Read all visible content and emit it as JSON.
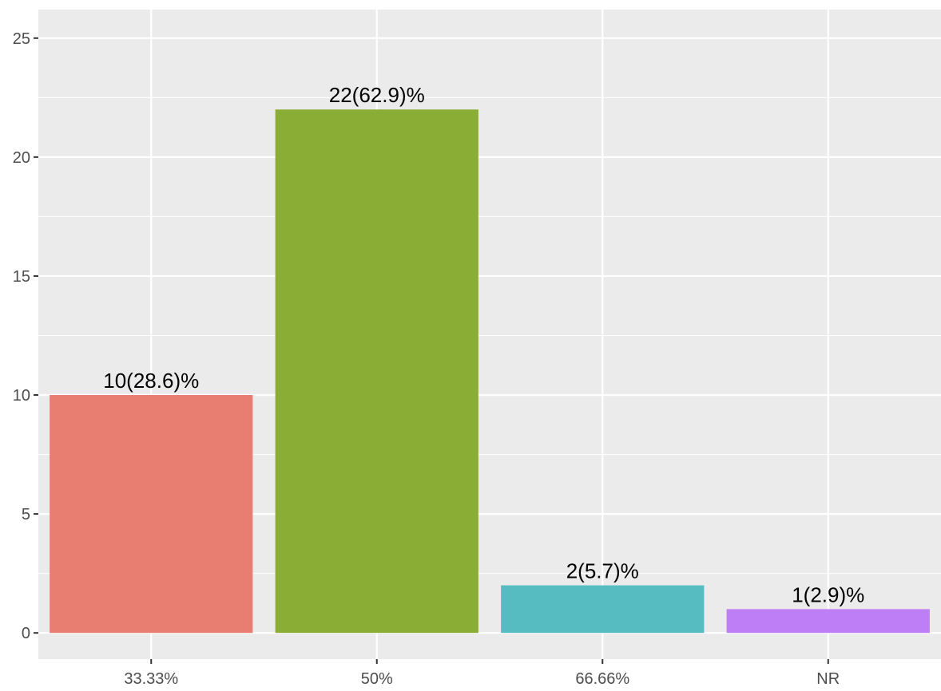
{
  "chart_data": {
    "type": "bar",
    "title": "",
    "xlabel": "",
    "ylabel": "",
    "categories": [
      "33.33%",
      "50%",
      "66.66%",
      "NR"
    ],
    "values": [
      10,
      22,
      2,
      1
    ],
    "data_labels": [
      "10(28.6)%",
      "22(62.9)%",
      "2(5.7)%",
      "1(2.9)%"
    ],
    "colors": [
      "#E87D72",
      "#8AAD35",
      "#56BCC2",
      "#BE7EF5"
    ],
    "ylim": [
      -1.1,
      26.2
    ],
    "yticks": [
      0,
      5,
      10,
      15,
      20,
      25
    ],
    "ytick_labels": [
      "0",
      "5",
      "10",
      "15",
      "20",
      "25"
    ],
    "grid": true,
    "legend": "none",
    "panel_background": "#EBEBEB",
    "grid_color": "#FFFFFF"
  }
}
